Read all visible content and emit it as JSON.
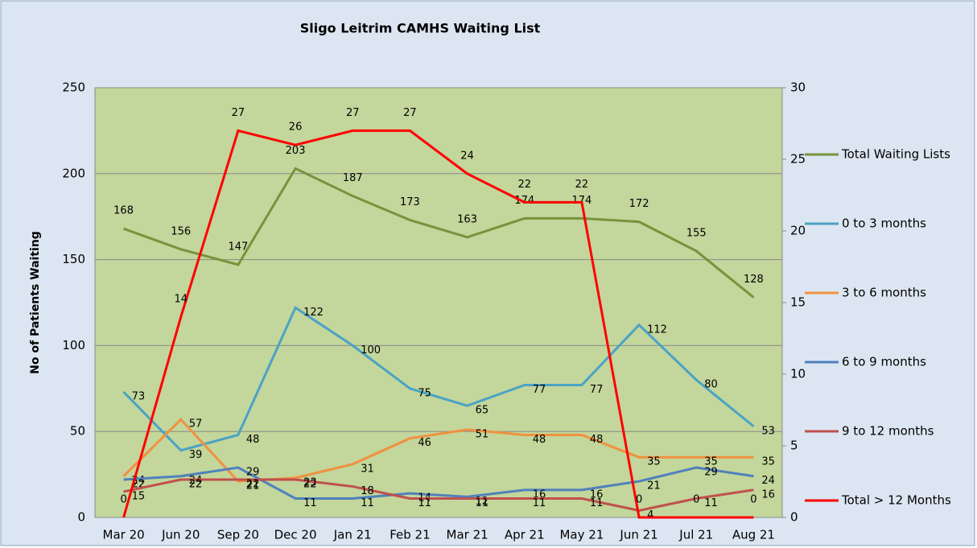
{
  "chart_data": {
    "type": "line",
    "title": "Sligo Leitrim CAMHS Waiting List",
    "ylabel": "No of Patients Waiting",
    "categories": [
      "Mar 20",
      "Jun 20",
      "Sep 20",
      "Dec 20",
      "Jan 21",
      "Feb 21",
      "Mar 21",
      "Apr 21",
      "May 21",
      "Jun 21",
      "Jul 21",
      "Aug 21"
    ],
    "series": [
      {
        "name": "Total Waiting Lists",
        "color": "#77933c",
        "values": [
          168,
          156,
          147,
          203,
          187,
          173,
          163,
          174,
          174,
          172,
          155,
          128
        ]
      },
      {
        "name": "0 to 3 months",
        "color": "#4aa3c4",
        "values": [
          73,
          39,
          48,
          122,
          100,
          75,
          65,
          77,
          77,
          112,
          80,
          53
        ]
      },
      {
        "name": "3 to 6 months",
        "color": "#f0913f",
        "values": [
          24,
          57,
          21,
          23,
          31,
          46,
          51,
          48,
          48,
          35,
          35,
          35
        ]
      },
      {
        "name": "6 to 9 months",
        "color": "#4f81bd",
        "values": [
          22,
          24,
          29,
          11,
          11,
          14,
          12,
          16,
          16,
          21,
          29,
          24
        ]
      },
      {
        "name": "9 to 12 months",
        "color": "#c0504d",
        "values": [
          15,
          22,
          22,
          22,
          18,
          11,
          11,
          11,
          11,
          4,
          11,
          16
        ]
      },
      {
        "name": "Total > 12 Months",
        "color": "#ff0000",
        "axis": "y2",
        "values": [
          0,
          14,
          27,
          26,
          27,
          27,
          24,
          22,
          22,
          0,
          0,
          0
        ]
      }
    ],
    "ylim": [
      0,
      250
    ],
    "yticks": [
      0,
      50,
      100,
      150,
      200,
      250
    ],
    "y2lim": [
      0,
      30
    ],
    "y2ticks": [
      0,
      5,
      10,
      15,
      20,
      25,
      30
    ],
    "grid": true,
    "legend": "right"
  }
}
